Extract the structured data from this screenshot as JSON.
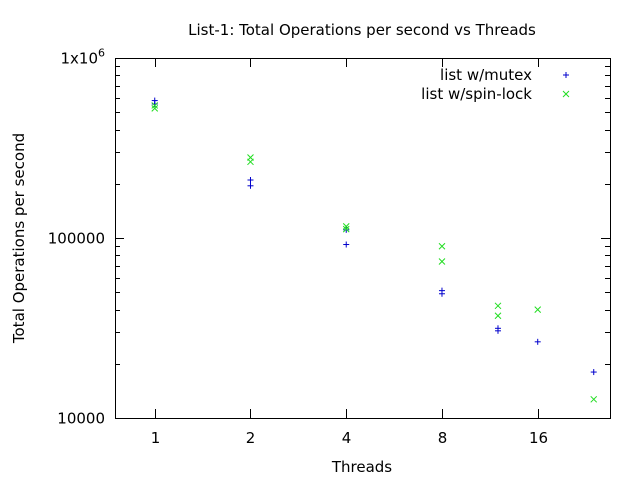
{
  "chart_data": {
    "type": "scatter",
    "title": "List-1: Total Operations per second vs Threads",
    "xlabel": "Threads",
    "ylabel": "Total Operations per second",
    "x_scale": "log2",
    "y_scale": "log10",
    "xlim": [
      0.75,
      27
    ],
    "ylim": [
      10000,
      1000000
    ],
    "x_ticks": [
      {
        "value": 1,
        "label": "1"
      },
      {
        "value": 2,
        "label": "2"
      },
      {
        "value": 4,
        "label": "4"
      },
      {
        "value": 8,
        "label": "8"
      },
      {
        "value": 16,
        "label": "16"
      }
    ],
    "y_ticks": [
      {
        "value": 10000,
        "label": "10000"
      },
      {
        "value": 100000,
        "label": "100000"
      },
      {
        "value": 1000000,
        "label": "1x10",
        "sup": "6"
      }
    ],
    "grid": false,
    "legend_position": "top-right",
    "series": [
      {
        "name": "list w/mutex",
        "marker": "plus",
        "color": "#0000cc",
        "points": [
          {
            "x": 1,
            "y": 580000
          },
          {
            "x": 1,
            "y": 555000
          },
          {
            "x": 2,
            "y": 210000
          },
          {
            "x": 2,
            "y": 195000
          },
          {
            "x": 4,
            "y": 111000
          },
          {
            "x": 4,
            "y": 92000
          },
          {
            "x": 8,
            "y": 51000
          },
          {
            "x": 8,
            "y": 49000
          },
          {
            "x": 12,
            "y": 31500
          },
          {
            "x": 12,
            "y": 30500
          },
          {
            "x": 16,
            "y": 26500
          },
          {
            "x": 24,
            "y": 18000
          }
        ]
      },
      {
        "name": "list w/spin-lock",
        "marker": "cross",
        "color": "#22dd22",
        "points": [
          {
            "x": 1,
            "y": 545000
          },
          {
            "x": 1,
            "y": 525000
          },
          {
            "x": 2,
            "y": 280000
          },
          {
            "x": 2,
            "y": 265000
          },
          {
            "x": 4,
            "y": 116000
          },
          {
            "x": 4,
            "y": 112000
          },
          {
            "x": 8,
            "y": 90000
          },
          {
            "x": 8,
            "y": 74000
          },
          {
            "x": 12,
            "y": 42000
          },
          {
            "x": 12,
            "y": 37000
          },
          {
            "x": 16,
            "y": 40000
          },
          {
            "x": 24,
            "y": 12700
          }
        ]
      }
    ]
  }
}
